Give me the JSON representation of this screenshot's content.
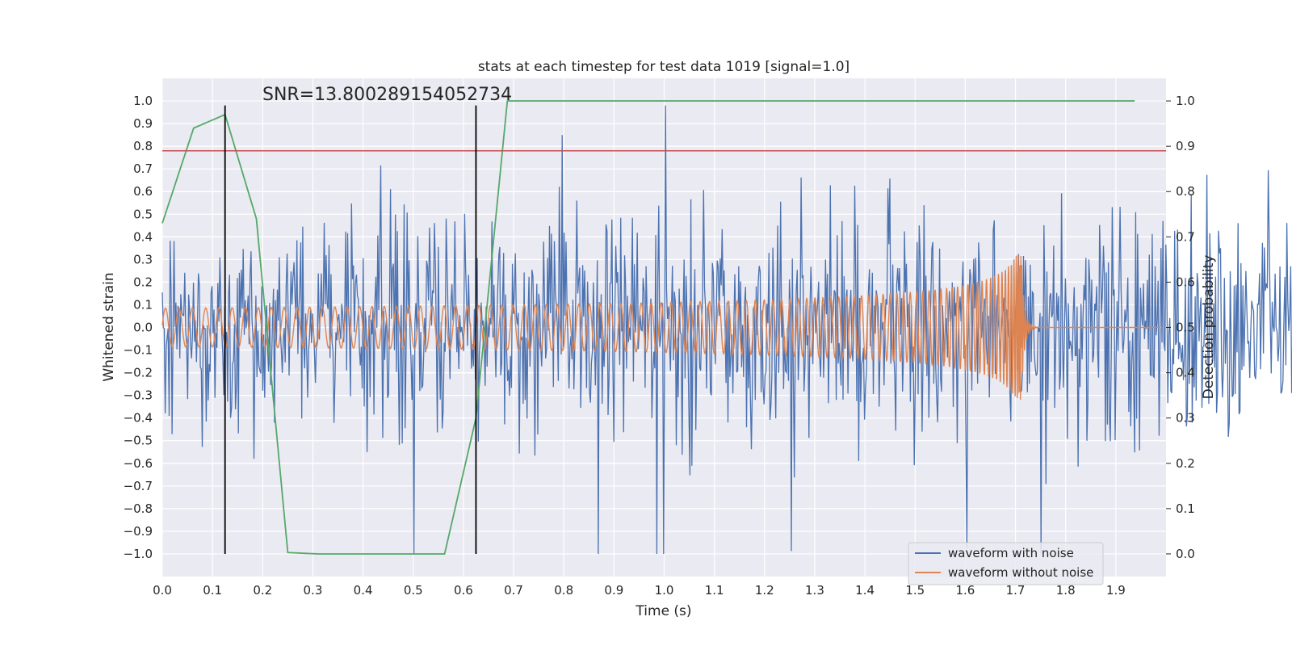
{
  "chart_data": {
    "type": "line",
    "title": "stats at each timestep for test data 1019 [signal=1.0]",
    "xlabel": "Time (s)",
    "ylabel": "Whitened strain",
    "y2label": "Detection probability",
    "xlim": [
      0.0,
      2.0
    ],
    "ylim": [
      -1.1,
      1.1
    ],
    "y2lim": [
      -0.05,
      1.05
    ],
    "xticks": [
      "0.0",
      "0.1",
      "0.2",
      "0.3",
      "0.4",
      "0.5",
      "0.6",
      "0.7",
      "0.8",
      "0.9",
      "1.0",
      "1.1",
      "1.2",
      "1.3",
      "1.4",
      "1.5",
      "1.6",
      "1.7",
      "1.8",
      "1.9"
    ],
    "yticks": [
      "1.0",
      "0.9",
      "0.8",
      "0.7",
      "0.6",
      "0.5",
      "0.4",
      "0.3",
      "0.2",
      "0.1",
      "0.0",
      "−0.1",
      "−0.2",
      "−0.3",
      "−0.4",
      "−0.5",
      "−0.6",
      "−0.7",
      "−0.8",
      "−0.9",
      "−1.0"
    ],
    "y2ticks": [
      "1.0",
      "0.9",
      "0.8",
      "0.7",
      "0.6",
      "0.5",
      "0.4",
      "0.3",
      "0.2",
      "0.1",
      "0.0"
    ],
    "annotation": "SNR=13.800289154052734",
    "threshold_y": 0.78,
    "vlines_x": [
      0.125,
      0.625
    ],
    "vline_range": [
      -1.0,
      0.98
    ],
    "series": [
      {
        "name": "waveform with noise",
        "color": "#4c72b0",
        "description": "whitened noisy strain, amplitude roughly within ±0.6 with spikes to ±1.0"
      },
      {
        "name": "waveform without noise",
        "color": "#dd8452",
        "description": "chirp signal, amplitude ~0.08 growing to ~0.3 near merger at 1.71 s, then ringdown"
      },
      {
        "name": "detection probability",
        "color": "#55a868",
        "axis": "right",
        "x": [
          0.0,
          0.0625,
          0.125,
          0.1875,
          0.25,
          0.3125,
          0.375,
          0.4375,
          0.5,
          0.5625,
          0.625,
          0.6875,
          0.75,
          0.8125,
          0.875,
          0.9375,
          1.0,
          1.0625,
          1.125,
          1.1875,
          1.25,
          1.3125,
          1.375,
          1.4375,
          1.5,
          1.5625,
          1.625,
          1.6875,
          1.75,
          1.8125,
          1.875,
          1.9375
        ],
        "y": [
          0.73,
          0.94,
          0.97,
          0.74,
          0.003,
          0.0,
          0.0,
          0.0,
          0.0,
          0.0,
          0.3,
          1.0,
          1.0,
          1.0,
          1.0,
          1.0,
          1.0,
          1.0,
          1.0,
          1.0,
          1.0,
          1.0,
          1.0,
          1.0,
          1.0,
          1.0,
          1.0,
          1.0,
          1.0,
          1.0,
          1.0,
          1.0
        ]
      }
    ],
    "legend": [
      "waveform with noise",
      "waveform without noise"
    ],
    "legend_position": "lower right",
    "colors": {
      "background": "#eaeaf2",
      "grid": "#ffffff",
      "threshold": "#c44e52",
      "vline": "#000000"
    }
  }
}
